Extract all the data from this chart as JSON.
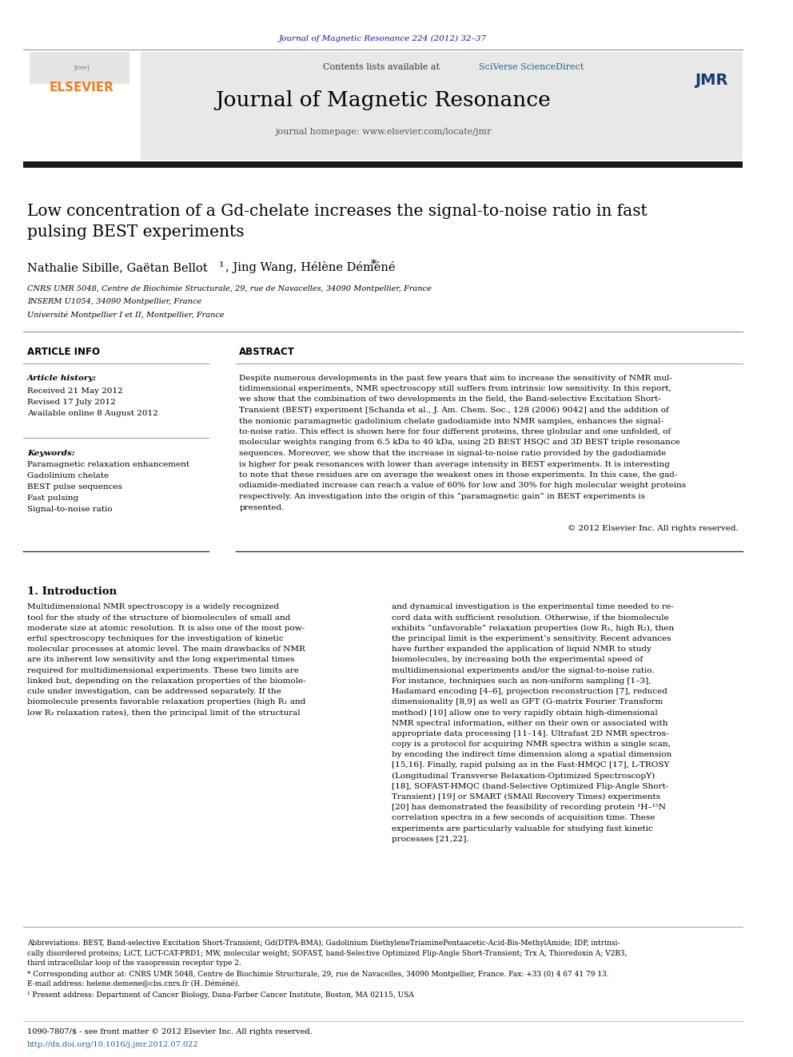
{
  "journal_ref": "Journal of Magnetic Resonance 224 (2012) 32–37",
  "journal_ref_color": "#1a0dab",
  "contents_text": "Contents lists available at ",
  "sciverse_text": "SciVerse ScienceDirect",
  "sciverse_color": "#1a6496",
  "journal_name": "Journal of Magnetic Resonance",
  "homepage_text": "journal homepage: www.elsevier.com/locate/jmr",
  "header_bg": "#e8e8e8",
  "title": "Low concentration of a Gd-chelate increases the signal-to-noise ratio in fast\npulsing BEST experiments",
  "authors": "Nathalie Sibille, Gaëtan Bellot",
  "author_sup1": "1",
  "authors2": ", Jing Wang, Hélène Déméné",
  "author_star": "*",
  "affil1": "CNRS UMR 5048, Centre de Biochimie Structurale, 29, rue de Navacelles, 34090 Montpellier, France",
  "affil2": "INSERM U1054, 34090 Montpellier, France",
  "affil3": "Université Montpellier I et II, Montpellier, France",
  "article_info_label": "ARTICLE INFO",
  "abstract_label": "ABSTRACT",
  "article_history_label": "Article history:",
  "received": "Received 21 May 2012",
  "revised": "Revised 17 July 2012",
  "available": "Available online 8 August 2012",
  "keywords_label": "Keywords:",
  "keywords": [
    "Paramagnetic relaxation enhancement",
    "Gadolinium chelate",
    "BEST pulse sequences",
    "Fast pulsing",
    "Signal-to-noise ratio"
  ],
  "abstract_text": "Despite numerous developments in the past few years that aim to increase the sensitivity of NMR multidimensional experiments, NMR spectroscopy still suffers from intrinsic low sensitivity. In this report, we show that the combination of two developments in the field, the Band-selective Excitation Short-Transient (BEST) experiment [Schanda et al., J. Am. Chem. Soc., 128 (2006) 9042] and the addition of the nonionic paramagnetic gadolinium chelate gadodiamide into NMR samples, enhances the signal-to-noise ratio. This effect is shown here for four different proteins, three globular and one unfolded, of molecular weights ranging from 6.5 kDa to 40 kDa, using 2D BEST HSQC and 3D BEST triple resonance sequences. Moreover, we show that the increase in signal-to-noise ratio provided by the gadodiamide is higher for peak resonances with lower than average intensity in BEST experiments. It is interesting to note that these residues are on average the weakest ones in those experiments. In this case, the gadodiamide-mediated increase can reach a value of 60% for low and 30% for high molecular weight proteins respectively. An investigation into the origin of this “paramagnetic gain” in BEST experiments is presented.",
  "copyright": "© 2012 Elsevier Inc. All rights reserved.",
  "intro_title": "1. Introduction",
  "intro_col1": "Multidimensional NMR spectroscopy is a widely recognized tool for the study of the structure of biomolecules of small and moderate size at atomic resolution. It is also one of the most powerful spectroscopy techniques for the investigation of kinetic molecular processes at atomic level. The main drawbacks of NMR are its inherent low sensitivity and the long experimental times required for multidimensional experiments. These two limits are linked but, depending on the relaxation properties of the biomolecule under investigation, can be addressed separately. If the biomolecule presents favorable relaxation properties (high R1 and low R2 relaxation rates), then the principal limit of the structural",
  "intro_col2": "and dynamical investigation is the experimental time needed to record data with sufficient resolution. Otherwise, if the biomolecule exhibits “unfavorable” relaxation properties (low R1, high R2), then the principal limit is the experiment’s sensitivity. Recent advances have further expanded the application of liquid NMR to study biomolecules, by increasing both the experimental speed of multidimensional experiments and/or the signal-to-noise ratio. For instance, techniques such as non-uniform sampling [1–3], Hadamard encoding [4–6], projection reconstruction [7], reduced dimensionality [8,9] as well as GFT (G-matrix Fourier Transform method) [10] allow one to very rapidly obtain high-dimensional NMR spectral information, either on their own or associated with appropriate data processing [11–14]. Ultrafast 2D NMR spectroscopy is a protocol for acquiring NMR spectra within a single scan, by encoding the indirect time dimension along a spatial dimension [15,16]. Finally, rapid pulsing as in the Fast-HMQC [17], L-TROSY (Longitudinal Transverse Relaxation-Optimized SpectroscopY) [18], SOFAST-HMQC (band-Selective Optimized Flip-Angle Short-Transient) [19] or SMART (SMAll Recovery Times) experiments [20] has demonstrated the feasibility of recording protein 1H–15N correlation spectra in a few seconds of acquisition time. These experiments are particularly valuable for studying fast kinetic processes [21,22].",
  "footnote_abbrev": "Abbreviations: BEST, Band-selective Excitation Short-Transient; Gd(DTPA-BMA), Gadolinium DiethyleneTriaminePentaacetic-Acid-Bis-MethylAmide; IDP, intrinsically disordered proteins; LiCT, LiCT-CAT-PRD1; MW, molecular weight; SOFAST, band-Selective Optimized Flip-Angle Short-Transient; Trx A, Thioredoxin A; V2B3, third intracellular loop of the vasopressin receptor type 2.",
  "footnote_star": "* Corresponding author at: CNRS UMR 5048, Centre de Biochimie Structurale, 29, rue de Navacelles, 34090 Montpellier, France. Fax: +33 (0) 4 67 41 79 13.",
  "footnote_email": "E-mail address: helene.demene@cbs.cnrs.fr (H. Déméné).",
  "footnote_1": "1 Present address: Department of Cancer Biology, Dana-Farber Cancer Institute, Boston, MA 02115, USA",
  "bottom_issn": "1090-7807/$ - see front matter © 2012 Elsevier Inc. All rights reserved.",
  "bottom_doi": "http://dx.doi.org/10.1016/j.jmr.2012.07.022",
  "bottom_doi_color": "#1a6496",
  "bg_color": "#ffffff",
  "text_color": "#000000",
  "elsevier_orange": "#f47b20",
  "separator_color": "#000000",
  "thick_bar_color": "#1a1a1a"
}
